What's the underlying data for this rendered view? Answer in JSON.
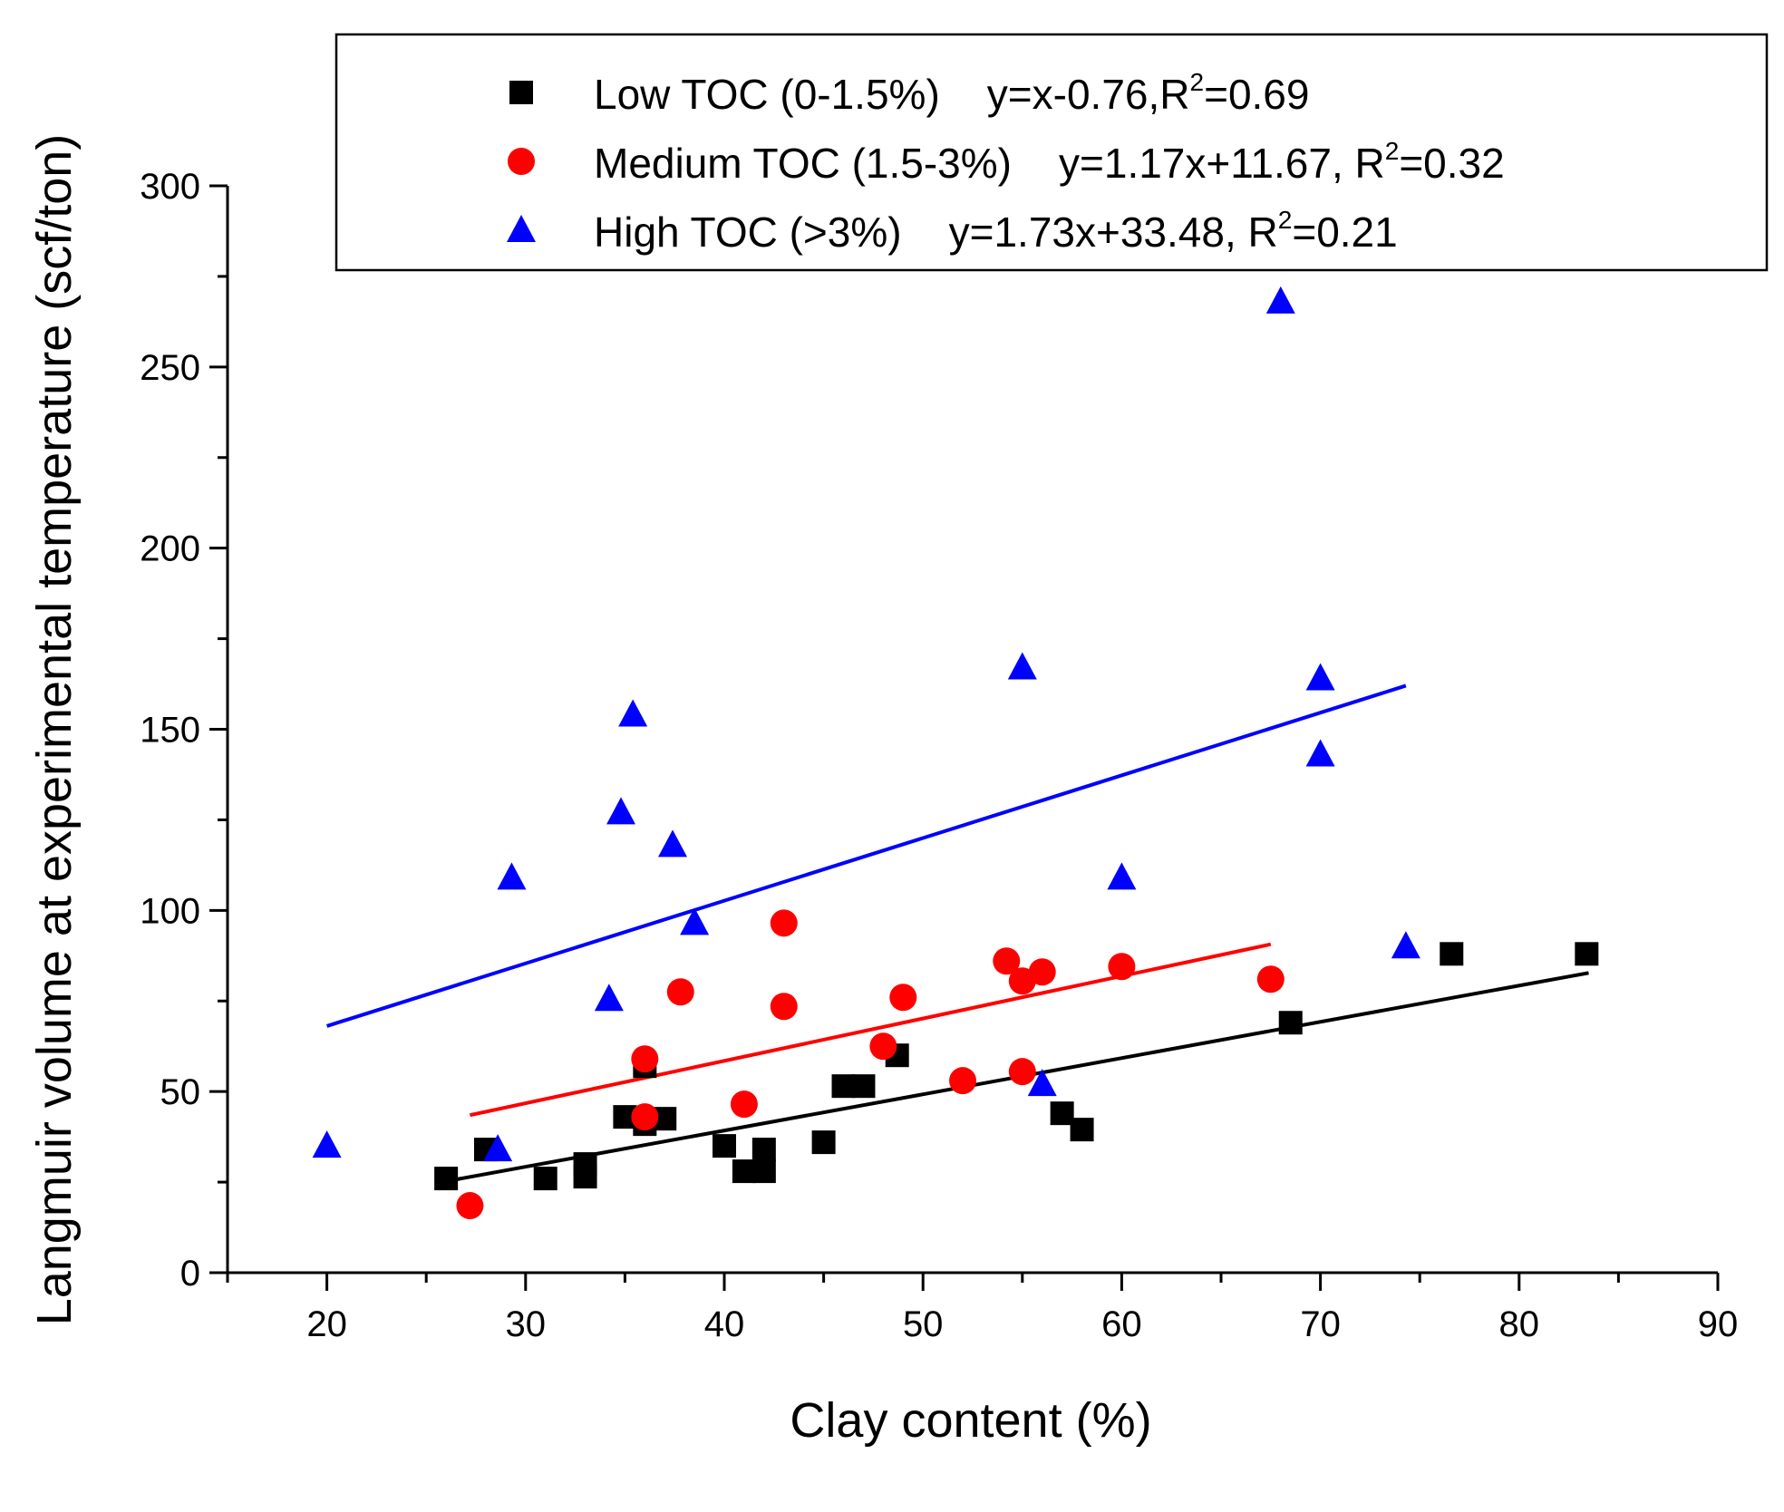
{
  "chart_data": {
    "type": "scatter",
    "title": "",
    "xlabel": "Clay content (%)",
    "ylabel": "Langmuir volume at experimental temperature (scf/ton)",
    "xlim": [
      15,
      90
    ],
    "ylim": [
      0,
      300
    ],
    "xticks": [
      20,
      30,
      40,
      50,
      60,
      70,
      80,
      90
    ],
    "yticks": [
      0,
      50,
      100,
      150,
      200,
      250,
      300
    ],
    "grid": false,
    "legend_position": "top-right",
    "series": [
      {
        "name": "Low TOC (0-1.5%)",
        "equation": "y=x-0.76,R",
        "r2_value": "=0.69",
        "marker": "square",
        "color": "#000000",
        "fit": {
          "slope": 1.0,
          "intercept": -0.76,
          "x_range": [
            26,
            83.5
          ]
        },
        "points": [
          [
            26,
            26
          ],
          [
            28,
            34
          ],
          [
            31,
            26
          ],
          [
            33,
            30
          ],
          [
            33,
            26.5
          ],
          [
            35,
            43
          ],
          [
            36,
            57
          ],
          [
            36,
            41
          ],
          [
            37,
            42.5
          ],
          [
            40,
            35
          ],
          [
            41,
            28
          ],
          [
            42,
            34
          ],
          [
            42,
            28
          ],
          [
            45,
            36
          ],
          [
            46,
            51.5
          ],
          [
            47,
            51.5
          ],
          [
            48.7,
            60
          ],
          [
            57,
            44
          ],
          [
            58,
            39.5
          ],
          [
            68.5,
            69
          ],
          [
            76.6,
            88
          ],
          [
            83.4,
            88
          ]
        ]
      },
      {
        "name": "Medium TOC (1.5-3%)",
        "equation": "y=1.17x+11.67, R",
        "r2_value": "=0.32",
        "marker": "circle",
        "color": "#ff0000",
        "fit": {
          "slope": 1.17,
          "intercept": 11.67,
          "x_range": [
            27.2,
            67.5
          ]
        },
        "points": [
          [
            27.2,
            18.5
          ],
          [
            36,
            59
          ],
          [
            36,
            43
          ],
          [
            37.8,
            77.5
          ],
          [
            41,
            46.5
          ],
          [
            43,
            96.5
          ],
          [
            43,
            73.5
          ],
          [
            48,
            62.5
          ],
          [
            49,
            76
          ],
          [
            52,
            53
          ],
          [
            54.2,
            86
          ],
          [
            55,
            80.5
          ],
          [
            55,
            55.5
          ],
          [
            56,
            83
          ],
          [
            60,
            84.5
          ],
          [
            67.5,
            81
          ]
        ]
      },
      {
        "name": "High TOC (>3%)",
        "equation": "y=1.73x+33.48, R",
        "r2_value": "=0.21",
        "marker": "triangle",
        "color": "#0000ff",
        "fit": {
          "slope": 1.73,
          "intercept": 33.48,
          "x_range": [
            20,
            74.3
          ]
        },
        "points": [
          [
            20,
            35
          ],
          [
            28.6,
            34
          ],
          [
            29.3,
            109
          ],
          [
            34.2,
            75.5
          ],
          [
            34.8,
            127
          ],
          [
            35.4,
            154
          ],
          [
            37.4,
            118
          ],
          [
            38.5,
            96.5
          ],
          [
            55,
            167
          ],
          [
            56,
            52
          ],
          [
            60,
            109
          ],
          [
            68,
            268
          ],
          [
            70,
            164
          ],
          [
            70,
            143
          ],
          [
            74.3,
            90
          ]
        ]
      }
    ]
  }
}
